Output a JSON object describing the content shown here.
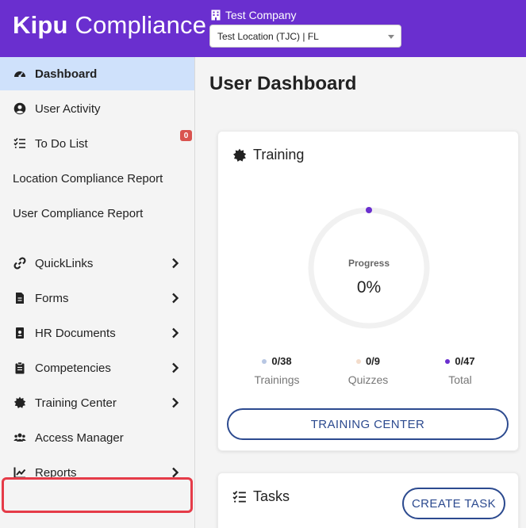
{
  "header": {
    "brand_bold": "Kipu",
    "brand_light": " Compliance",
    "company": "Test Company",
    "location": "Test Location (TJC) | FL",
    "color": "#6a2fcf"
  },
  "sidebar": {
    "items": [
      {
        "label": "Dashboard",
        "icon": "dashboard-icon"
      },
      {
        "label": "User Activity",
        "icon": "user-circle-icon"
      },
      {
        "label": "To Do List",
        "icon": "checklist-icon"
      },
      {
        "label": "Location Compliance Report"
      },
      {
        "label": "User Compliance Report"
      },
      {
        "label": "QuickLinks",
        "icon": "link-icon"
      },
      {
        "label": "Forms",
        "icon": "file-icon"
      },
      {
        "label": "HR Documents",
        "icon": "id-badge-icon"
      },
      {
        "label": "Competencies",
        "icon": "clipboard-icon"
      },
      {
        "label": "Training Center",
        "icon": "certificate-icon"
      },
      {
        "label": "Access Manager",
        "icon": "users-icon"
      },
      {
        "label": "Reports",
        "icon": "chart-line-icon"
      }
    ],
    "todo_count": "0",
    "active_color": "#cfe1fb",
    "highlight_color": "#e53b48"
  },
  "main": {
    "title": "User Dashboard",
    "training": {
      "title": "Training",
      "progress_label": "Progress",
      "progress_value": "0%",
      "progress_fraction": 0,
      "stats": [
        {
          "value": "0/38",
          "label": "Trainings",
          "color": "#b8c7e3"
        },
        {
          "value": "0/9",
          "label": "Quizzes",
          "color": "#f3dccb"
        },
        {
          "value": "0/47",
          "label": "Total",
          "color": "#6a2fcf"
        }
      ],
      "button": "TRAINING CENTER"
    },
    "tasks": {
      "title": "Tasks",
      "button": "CREATE TASK"
    }
  }
}
